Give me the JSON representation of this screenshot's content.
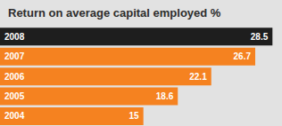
{
  "chart_data": {
    "type": "bar",
    "title": "Return on average capital employed %",
    "orientation": "horizontal",
    "categories": [
      "2008",
      "2007",
      "2006",
      "2005",
      "2004"
    ],
    "values": [
      28.5,
      26.7,
      22.1,
      18.6,
      15.0
    ],
    "colors": [
      "#1e1e1e",
      "#f58220",
      "#f58220",
      "#f58220",
      "#f58220"
    ],
    "xlim": [
      0,
      29.5
    ],
    "data_labels": true,
    "tick_labels": false,
    "grid": false
  }
}
